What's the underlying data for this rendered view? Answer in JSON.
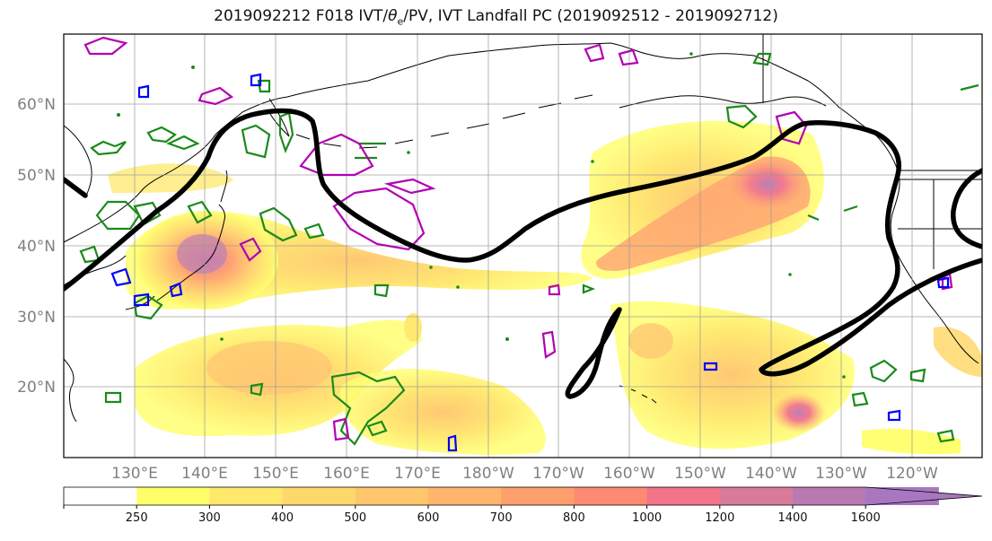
{
  "title": {
    "prefix": "2019092212 F018 IVT/",
    "theta_symbol": "θ",
    "theta_sub": "e",
    "suffix": "/PV, IVT Landfall PC (2019092512 - 2019092712)"
  },
  "map": {
    "projection": "PlateCarree",
    "lon_range": [
      120,
      250
    ],
    "lat_range": [
      10,
      70
    ],
    "lat_labels": [
      "20°N",
      "30°N",
      "40°N",
      "50°N",
      "60°N"
    ],
    "lon_labels": [
      "130°E",
      "140°E",
      "150°E",
      "160°E",
      "170°E",
      "180°W",
      "170°W",
      "160°W",
      "150°W",
      "140°W",
      "130°W",
      "120°W"
    ],
    "grid": true,
    "colors": {
      "coast": "#000000",
      "pc_contour": "#000000",
      "theta_contour": "#1a8a1a",
      "pv_magenta": "#b300b3",
      "pv_blue": "#0000ff"
    }
  },
  "colorbar": {
    "ticks": [
      "250",
      "300",
      "400",
      "500",
      "600",
      "700",
      "800",
      "1000",
      "1200",
      "1400",
      "1600"
    ],
    "colors": [
      "#ffffff",
      "#ffff6a",
      "#ffe86c",
      "#ffd86c",
      "#ffc66c",
      "#ffb56c",
      "#ff9f6c",
      "#ff8a72",
      "#f2738a",
      "#d97a9a",
      "#b97ab0",
      "#a877c0"
    ],
    "extend": "max"
  }
}
